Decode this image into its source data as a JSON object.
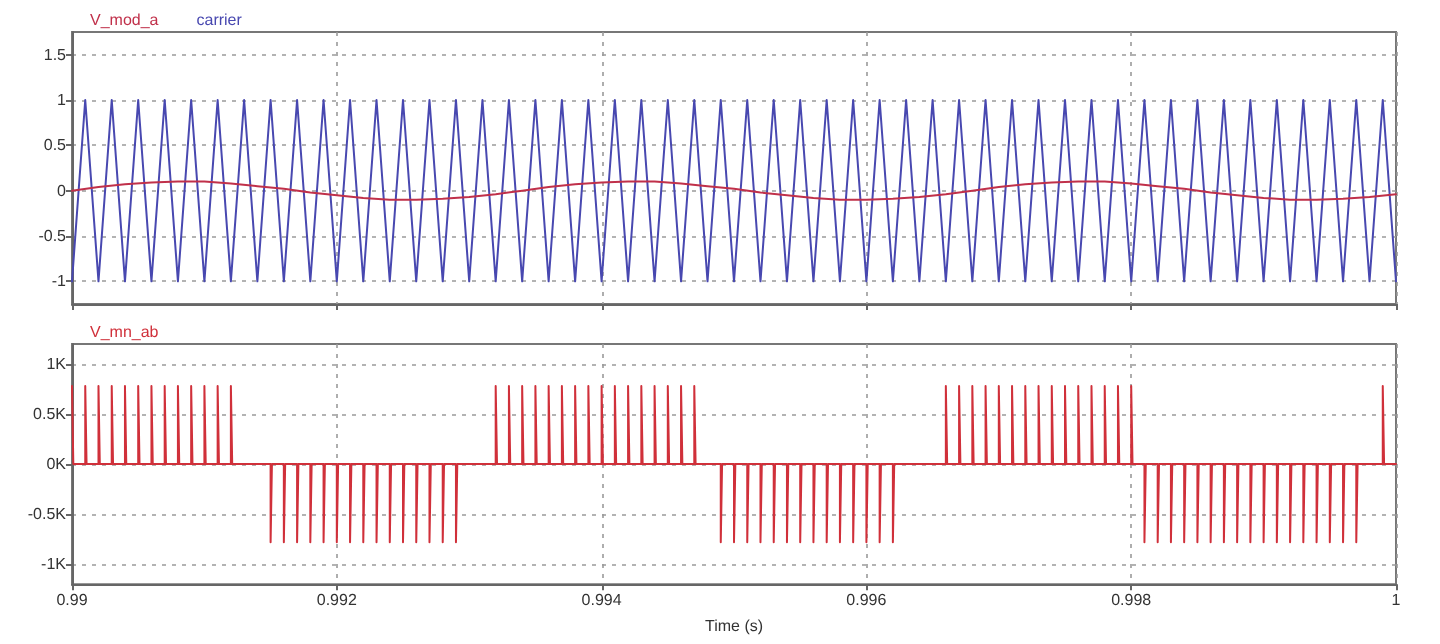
{
  "chart_data": [
    {
      "type": "line",
      "legend": "top left",
      "grid": true,
      "tick_labels": "y",
      "xlim": [
        0.99,
        1
      ],
      "xticks": [
        0.99,
        0.992,
        0.994,
        0.996,
        0.998,
        1
      ],
      "ylim": [
        -1.25,
        1.75
      ],
      "yticks": [
        1.5,
        1,
        0.5,
        0,
        -0.5,
        -1
      ],
      "series": [
        {
          "name": "V_mod_a",
          "color": "#c0304a",
          "x": [
            0.99,
            0.9902,
            0.9904,
            0.9906,
            0.9908,
            0.991,
            0.9912,
            0.9914,
            0.9916,
            0.9918,
            0.992,
            0.9922,
            0.9924,
            0.9926,
            0.9928,
            0.993,
            0.9932,
            0.9934,
            0.9936,
            0.9938,
            0.994,
            0.9942,
            0.9944,
            0.9946,
            0.9948,
            0.995,
            0.9952,
            0.9954,
            0.9956,
            0.9958,
            0.996,
            0.9962,
            0.9964,
            0.9966,
            0.9968,
            0.997,
            0.9972,
            0.9974,
            0.9976,
            0.9978,
            0.998,
            0.9982,
            0.9984,
            0.9986,
            0.9988,
            0.999,
            0.9992,
            0.9994,
            0.9996,
            0.9998,
            1
          ],
          "values": [
            0,
            0.04,
            0.07,
            0.09,
            0.1,
            0.1,
            0.08,
            0.05,
            0.02,
            -0.02,
            -0.05,
            -0.08,
            -0.1,
            -0.1,
            -0.09,
            -0.07,
            -0.04,
            0,
            0.04,
            0.07,
            0.09,
            0.1,
            0.1,
            0.08,
            0.05,
            0.02,
            -0.02,
            -0.05,
            -0.08,
            -0.1,
            -0.1,
            -0.09,
            -0.07,
            -0.04,
            0,
            0.04,
            0.07,
            0.09,
            0.1,
            0.1,
            0.08,
            0.05,
            0.02,
            -0.02,
            -0.05,
            -0.08,
            -0.1,
            -0.1,
            -0.09,
            -0.07,
            -0.04
          ]
        },
        {
          "name": "carrier",
          "color": "#4848b0",
          "x": [
            0.99,
            0.9901,
            0.9902,
            0.9903,
            0.9904,
            0.9905,
            0.9906,
            0.9907,
            0.9908,
            0.9909,
            0.991,
            0.9911,
            0.9912,
            0.9913,
            0.9914,
            0.9915,
            0.9916,
            0.9917,
            0.9918,
            0.9919,
            0.992,
            0.9921,
            0.9922,
            0.9923,
            0.9924,
            0.9925,
            0.9926,
            0.9927,
            0.9928,
            0.9929,
            0.993,
            0.9931,
            0.9932,
            0.9933,
            0.9934,
            0.9935,
            0.9936,
            0.9937,
            0.9938,
            0.9939,
            0.994,
            0.9941,
            0.9942,
            0.9943,
            0.9944,
            0.9945,
            0.9946,
            0.9947,
            0.9948,
            0.9949,
            0.995,
            0.9951,
            0.9952,
            0.9953,
            0.9954,
            0.9955,
            0.9956,
            0.9957,
            0.9958,
            0.9959,
            0.996,
            0.9961,
            0.9962,
            0.9963,
            0.9964,
            0.9965,
            0.9966,
            0.9967,
            0.9968,
            0.9969,
            0.997,
            0.9971,
            0.9972,
            0.9973,
            0.9974,
            0.9975,
            0.9976,
            0.9977,
            0.9978,
            0.9979,
            0.998,
            0.9981,
            0.9982,
            0.9983,
            0.9984,
            0.9985,
            0.9986,
            0.9987,
            0.9988,
            0.9989,
            0.999,
            0.9991,
            0.9992,
            0.9993,
            0.9994,
            0.9995,
            0.9996,
            0.9997,
            0.9998,
            0.9999,
            1
          ],
          "values": [
            -1,
            1,
            -1,
            1,
            -1,
            1,
            -1,
            1,
            -1,
            1,
            -1,
            1,
            -1,
            1,
            -1,
            1,
            -1,
            1,
            -1,
            1,
            -1,
            1,
            -1,
            1,
            -1,
            1,
            -1,
            1,
            -1,
            1,
            -1,
            1,
            -1,
            1,
            -1,
            1,
            -1,
            1,
            -1,
            1,
            -1,
            1,
            -1,
            1,
            -1,
            1,
            -1,
            1,
            -1,
            1,
            -1,
            1,
            -1,
            1,
            -1,
            1,
            -1,
            1,
            -1,
            1,
            -1,
            1,
            -1,
            1,
            -1,
            1,
            -1,
            1,
            -1,
            1,
            -1,
            1,
            -1,
            1,
            -1,
            1,
            -1,
            1,
            -1,
            1,
            -1,
            1,
            -1,
            1,
            -1,
            1,
            -1,
            1,
            -1,
            1,
            -1,
            1,
            -1,
            1,
            -1,
            1,
            -1,
            1,
            -1,
            1,
            -1
          ]
        }
      ]
    },
    {
      "type": "step",
      "legend": "top left",
      "grid": true,
      "xlabel": "Time (s)",
      "xlim": [
        0.99,
        1
      ],
      "xticks": [
        0.99,
        0.992,
        0.994,
        0.996,
        0.998,
        1
      ],
      "ylim": [
        -1200,
        1200
      ],
      "yticks": [
        {
          "value": 1000,
          "label": "1K"
        },
        {
          "value": 500,
          "label": "0.5K"
        },
        {
          "value": 0,
          "label": "0K"
        },
        {
          "value": -500,
          "label": "-0.5K"
        },
        {
          "value": -1000,
          "label": "-1K"
        }
      ],
      "series": [
        {
          "name": "V_mn_ab",
          "color": "#d0303a",
          "x": [
            0.99,
            0.99001,
            0.9901,
            0.99011,
            0.9902,
            0.99021,
            0.9903,
            0.99031,
            0.9904,
            0.99041,
            0.9905,
            0.99051,
            0.9906,
            0.99061,
            0.9907,
            0.99071,
            0.9908,
            0.99081,
            0.9909,
            0.99091,
            0.991,
            0.99101,
            0.9911,
            0.99111,
            0.9912,
            0.99121,
            0.9915,
            0.99151,
            0.9916,
            0.99161,
            0.9917,
            0.99171,
            0.9918,
            0.99181,
            0.9919,
            0.99191,
            0.992,
            0.99201,
            0.9921,
            0.99211,
            0.9922,
            0.99221,
            0.9923,
            0.99231,
            0.9924,
            0.99241,
            0.9925,
            0.99251,
            0.9926,
            0.99261,
            0.9927,
            0.99271,
            0.9928,
            0.99281,
            0.9929,
            0.99291,
            0.9932,
            0.99321,
            0.9933,
            0.99331,
            0.9934,
            0.99341,
            0.9935,
            0.99351,
            0.9936,
            0.99361,
            0.9937,
            0.99371,
            0.9938,
            0.99381,
            0.9939,
            0.99391,
            0.994,
            0.99401,
            0.9941,
            0.99411,
            0.9942,
            0.99421,
            0.9943,
            0.99431,
            0.9944,
            0.99441,
            0.9945,
            0.99451,
            0.9946,
            0.99461,
            0.9947,
            0.99471,
            0.9949,
            0.99491,
            0.995,
            0.99501,
            0.9951,
            0.99511,
            0.9952,
            0.99521,
            0.9953,
            0.99531,
            0.9954,
            0.99541,
            0.9955,
            0.99551,
            0.9956,
            0.99561,
            0.9957,
            0.99571,
            0.9958,
            0.99581,
            0.9959,
            0.99591,
            0.996,
            0.99601,
            0.9961,
            0.99611,
            0.9962,
            0.99621,
            0.9966,
            0.99661,
            0.9967,
            0.99671,
            0.9968,
            0.99681,
            0.9969,
            0.99691,
            0.997,
            0.99701,
            0.9971,
            0.99711,
            0.9972,
            0.99721,
            0.9973,
            0.99731,
            0.9974,
            0.99741,
            0.9975,
            0.99751,
            0.9976,
            0.99761,
            0.9977,
            0.99771,
            0.9978,
            0.99781,
            0.9979,
            0.99791,
            0.998,
            0.99801,
            0.9981,
            0.99811,
            0.9982,
            0.99821,
            0.9983,
            0.99831,
            0.9984,
            0.99841,
            0.9985,
            0.99851,
            0.9986,
            0.99861,
            0.9987,
            0.99871,
            0.9988,
            0.99881,
            0.9989,
            0.99891,
            0.999,
            0.99901,
            0.9991,
            0.99911,
            0.9992,
            0.99921,
            0.9993,
            0.99931,
            0.9994,
            0.99941,
            0.9995,
            0.99951,
            0.9996,
            0.99961,
            0.9997,
            0.99971,
            0.9999,
            0.99991,
            1
          ],
          "values": [
            780,
            0,
            780,
            0,
            780,
            0,
            780,
            0,
            780,
            0,
            780,
            0,
            780,
            0,
            780,
            0,
            780,
            0,
            780,
            0,
            780,
            0,
            780,
            0,
            780,
            0,
            -780,
            0,
            -780,
            0,
            -780,
            0,
            -780,
            0,
            -780,
            0,
            -780,
            0,
            -780,
            0,
            -780,
            0,
            -780,
            0,
            -780,
            0,
            -780,
            0,
            -780,
            0,
            -780,
            0,
            -780,
            0,
            -780,
            0,
            780,
            0,
            780,
            0,
            780,
            0,
            780,
            0,
            780,
            0,
            780,
            0,
            780,
            0,
            780,
            0,
            780,
            0,
            780,
            0,
            780,
            0,
            780,
            0,
            780,
            0,
            780,
            0,
            780,
            0,
            780,
            0,
            -780,
            0,
            -780,
            0,
            -780,
            0,
            -780,
            0,
            -780,
            0,
            -780,
            0,
            -780,
            0,
            -780,
            0,
            -780,
            0,
            -780,
            0,
            -780,
            0,
            -780,
            0,
            -780,
            0,
            -780,
            0,
            780,
            0,
            780,
            0,
            780,
            0,
            780,
            0,
            780,
            0,
            780,
            0,
            780,
            0,
            780,
            0,
            780,
            0,
            780,
            0,
            780,
            0,
            780,
            0,
            780,
            0,
            780,
            0,
            780,
            0,
            -780,
            0,
            -780,
            0,
            -780,
            0,
            -780,
            0,
            -780,
            0,
            -780,
            0,
            -780,
            0,
            -780,
            0,
            -780,
            0,
            -780,
            0,
            -780,
            0,
            -780,
            0,
            -780,
            0,
            -780,
            0,
            -780,
            0,
            -780,
            0,
            -780,
            0,
            780,
            0,
            0
          ]
        }
      ]
    }
  ]
}
